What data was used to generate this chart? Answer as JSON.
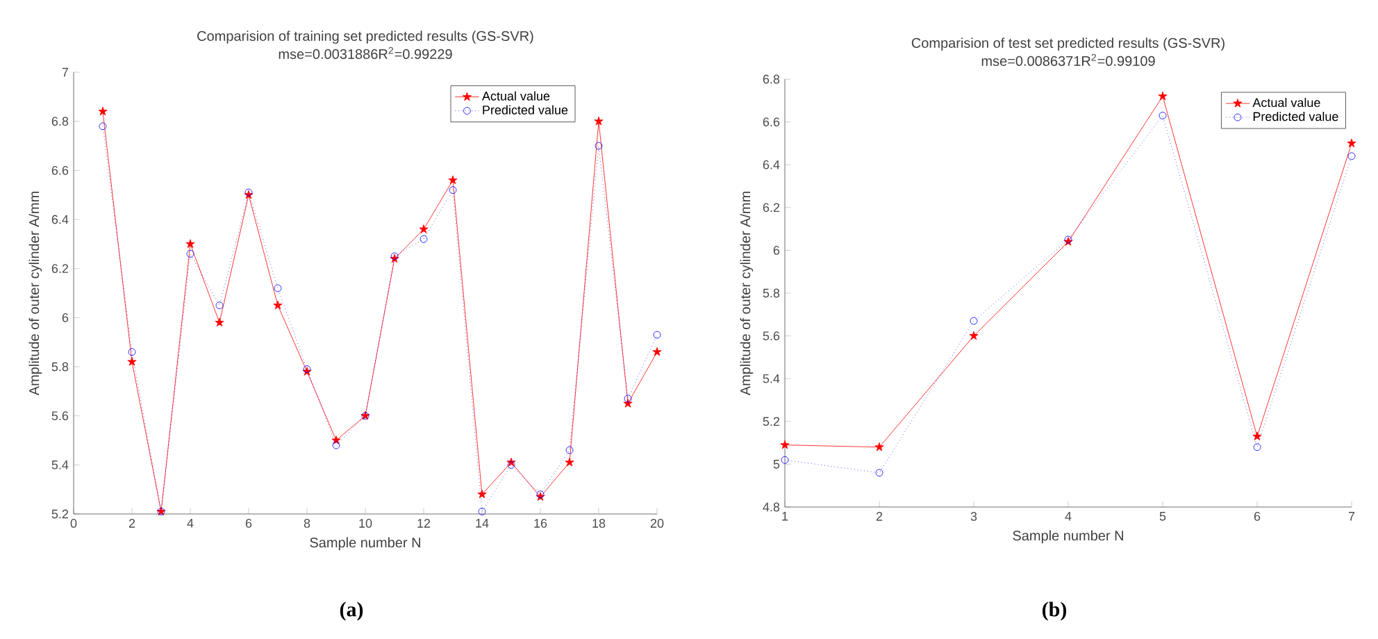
{
  "chart_data": [
    {
      "type": "line",
      "title": "Comparision of training set predicted results (GS-SVR)",
      "subtitle": "mse=0.0031886R$^{2}$=0.99229",
      "xlabel": "Sample number N",
      "ylabel": "Amplitude of outer cylinder A/mm",
      "x": [
        1,
        2,
        3,
        4,
        5,
        6,
        7,
        8,
        9,
        10,
        11,
        12,
        13,
        14,
        15,
        16,
        17,
        18,
        19,
        20
      ],
      "series": [
        {
          "name": "Actual value",
          "color": "#ff0000",
          "marker": "star",
          "line_style": "solid",
          "values": [
            6.84,
            5.82,
            5.21,
            6.3,
            5.98,
            6.5,
            6.05,
            5.78,
            5.5,
            5.6,
            6.24,
            6.36,
            6.56,
            5.28,
            5.41,
            5.27,
            5.41,
            6.8,
            5.65,
            5.86
          ]
        },
        {
          "name": "Predicted value",
          "color": "#0000ff",
          "marker": "circle",
          "line_style": "dotted",
          "values": [
            6.78,
            5.86,
            5.21,
            6.26,
            6.05,
            6.51,
            6.12,
            5.79,
            5.48,
            5.6,
            6.25,
            6.32,
            6.52,
            5.21,
            5.4,
            5.28,
            5.46,
            6.7,
            5.67,
            5.93
          ]
        }
      ],
      "xlim": [
        0,
        20
      ],
      "xticks": [
        0,
        2,
        4,
        6,
        8,
        10,
        12,
        14,
        16,
        18,
        20
      ],
      "ylim": [
        5.2,
        7
      ],
      "yticks": [
        5.2,
        5.4,
        5.6,
        5.8,
        6,
        6.2,
        6.4,
        6.6,
        6.8,
        7
      ],
      "legend": "top right",
      "grid": false,
      "annotations": [
        "(a)"
      ]
    },
    {
      "type": "line",
      "title": "Comparision of test set predicted results (GS-SVR)",
      "subtitle": "mse=0.0086371R$^{2}$=0.99109",
      "xlabel": "Sample number N",
      "ylabel": "Amplitude of outer cylinder A/mm",
      "x": [
        1,
        2,
        3,
        4,
        5,
        6,
        7
      ],
      "series": [
        {
          "name": "Actual value",
          "color": "#ff0000",
          "marker": "star",
          "line_style": "solid",
          "values": [
            5.09,
            5.08,
            5.6,
            6.04,
            6.72,
            5.13,
            6.5
          ]
        },
        {
          "name": "Predicted value",
          "color": "#0000ff",
          "marker": "circle",
          "line_style": "dotted",
          "values": [
            5.02,
            4.96,
            5.67,
            6.05,
            6.63,
            5.08,
            6.44
          ]
        }
      ],
      "xlim": [
        1,
        7
      ],
      "xticks": [
        1,
        2,
        3,
        4,
        5,
        6,
        7
      ],
      "ylim": [
        4.8,
        6.8
      ],
      "yticks": [
        4.8,
        5,
        5.2,
        5.4,
        5.6,
        5.8,
        6,
        6.2,
        6.4,
        6.6,
        6.8
      ],
      "legend": "top right",
      "grid": false,
      "annotations": [
        "(b)"
      ]
    }
  ]
}
